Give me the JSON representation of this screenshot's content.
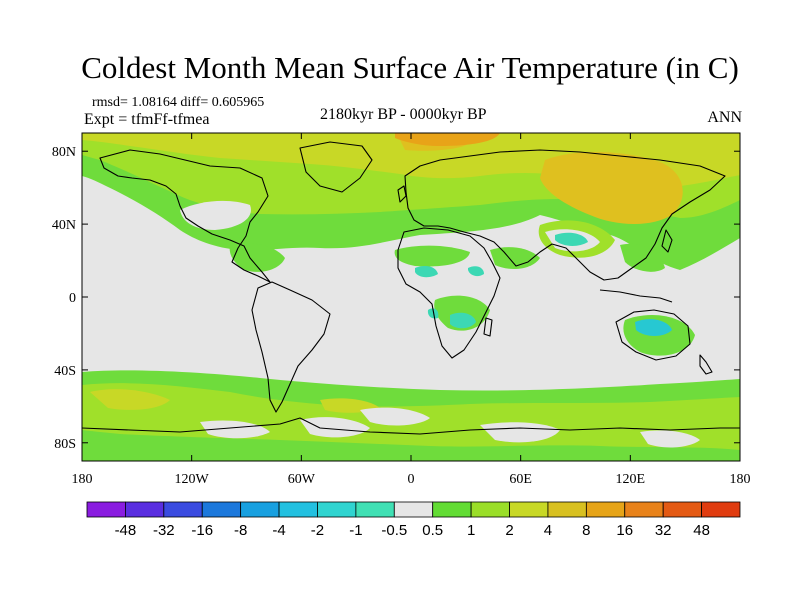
{
  "title": "Coldest Month Mean Surface Air Temperature (in C)",
  "stats_line": "rmsd= 1.08164 diff= 0.605965",
  "experiment_line": "Expt = tfmFf-tfmea",
  "period": "2180kyr BP - 0000kyr BP",
  "season": "ANN",
  "map": {
    "projection": "cylindrical-equidistant",
    "lon_range": [
      -180,
      180
    ],
    "lat_range": [
      -90,
      90
    ],
    "lon_ticks": [
      {
        "value": -180,
        "label": "180"
      },
      {
        "value": -120,
        "label": "120W"
      },
      {
        "value": -60,
        "label": "60W"
      },
      {
        "value": 0,
        "label": "0"
      },
      {
        "value": 60,
        "label": "60E"
      },
      {
        "value": 120,
        "label": "120E"
      },
      {
        "value": 180,
        "label": "180"
      }
    ],
    "lat_ticks": [
      {
        "value": 80,
        "label": "80N"
      },
      {
        "value": 40,
        "label": "40N"
      },
      {
        "value": 0,
        "label": "0"
      },
      {
        "value": -40,
        "label": "40S"
      },
      {
        "value": -80,
        "label": "80S"
      }
    ],
    "colors": {
      "neutral": "#e6e6e6",
      "pos_0_5_1": "#6fdc3c",
      "pos_1_2": "#a0e02a",
      "pos_2_4": "#c8d826",
      "pos_4_8": "#dfc01f",
      "pos_8_16": "#e8a318",
      "neg_1_0_5": "#3cd8b4",
      "neg_2_1": "#27c8d2",
      "coast": "#000000"
    }
  },
  "colorbar": {
    "labels": [
      "-48",
      "-32",
      "-16",
      "-8",
      "-4",
      "-2",
      "-1",
      "-0.5",
      "0.5",
      "1",
      "2",
      "4",
      "8",
      "16",
      "32",
      "48"
    ],
    "colors": [
      "#8a1ce0",
      "#5a2ee0",
      "#3a4be0",
      "#1c78dc",
      "#18a0e0",
      "#22c0e0",
      "#30d4d0",
      "#40e0b4",
      "#e6e6e6",
      "#62dc34",
      "#9ade28",
      "#c8d826",
      "#d8c020",
      "#e6a418",
      "#e8821a",
      "#e45a14",
      "#e03c10"
    ]
  }
}
